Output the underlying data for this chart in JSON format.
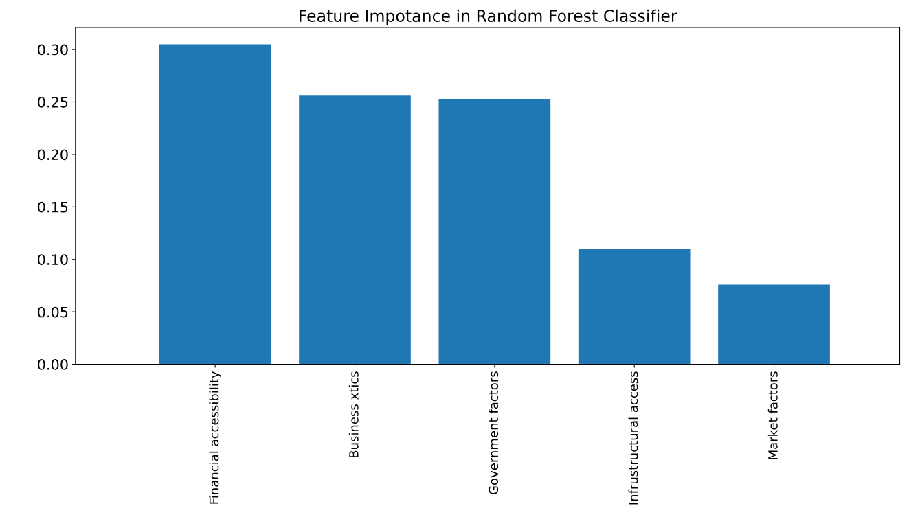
{
  "chart_data": {
    "type": "bar",
    "title": "Feature Impotance in Random Forest Classifier",
    "categories": [
      "Financial accessibility",
      "Business xtics",
      "Government factors",
      "Infrustructural access",
      "Market factors"
    ],
    "values": [
      0.305,
      0.256,
      0.253,
      0.11,
      0.076
    ],
    "color": "#1f77b4",
    "ylim": [
      0,
      0.321
    ],
    "yticks": [
      {
        "value": 0,
        "label": "0.00"
      },
      {
        "value": 0.05,
        "label": "0.05"
      },
      {
        "value": 0.1,
        "label": "0.10"
      },
      {
        "value": 0.15,
        "label": "0.15"
      },
      {
        "value": 0.2,
        "label": "0.20"
      },
      {
        "value": 0.25,
        "label": "0.25"
      },
      {
        "value": 0.3,
        "label": "0.30"
      }
    ],
    "grid": false
  }
}
